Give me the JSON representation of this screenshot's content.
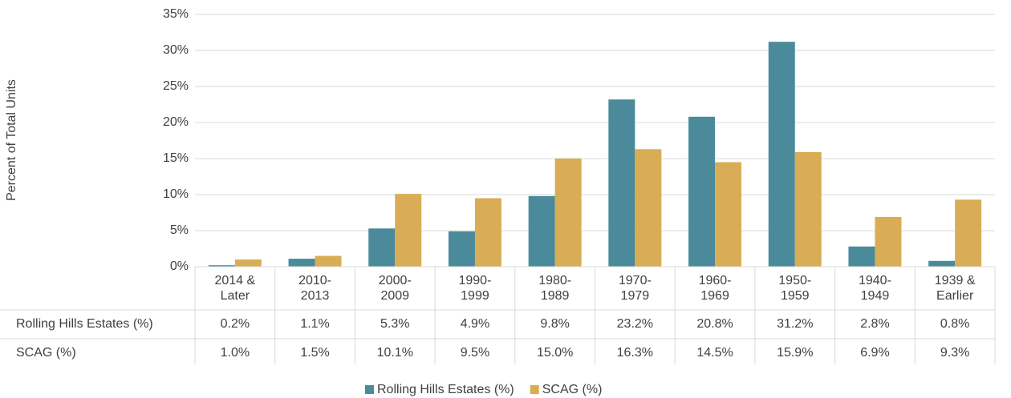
{
  "chart_data": {
    "type": "bar",
    "y_label": "Percent of Total Units",
    "categories": [
      [
        "2014 &",
        "Later"
      ],
      [
        "2010-",
        "2013"
      ],
      [
        "2000-",
        "2009"
      ],
      [
        "1990-",
        "1999"
      ],
      [
        "1980-",
        "1989"
      ],
      [
        "1970-",
        "1979"
      ],
      [
        "1960-",
        "1969"
      ],
      [
        "1950-",
        "1959"
      ],
      [
        "1940-",
        "1949"
      ],
      [
        "1939 &",
        "Earlier"
      ]
    ],
    "series": [
      {
        "name": "Rolling Hills Estates (%)",
        "color": "#4a8a9a",
        "values": [
          0.2,
          1.1,
          5.3,
          4.9,
          9.8,
          23.2,
          20.8,
          31.2,
          2.8,
          0.8
        ],
        "value_labels": [
          "0.2%",
          "1.1%",
          "5.3%",
          "4.9%",
          "9.8%",
          "23.2%",
          "20.8%",
          "31.2%",
          "2.8%",
          "0.8%"
        ]
      },
      {
        "name": "SCAG (%)",
        "color": "#d9ad56",
        "values": [
          1.0,
          1.5,
          10.1,
          9.5,
          15.0,
          16.3,
          14.5,
          15.9,
          6.9,
          9.3
        ],
        "value_labels": [
          "1.0%",
          "1.5%",
          "10.1%",
          "9.5%",
          "15.0%",
          "16.3%",
          "14.5%",
          "15.9%",
          "6.9%",
          "9.3%"
        ]
      }
    ],
    "ylim": [
      0,
      35
    ],
    "yticks": [
      {
        "value": 0,
        "label": "0%"
      },
      {
        "value": 5,
        "label": "5%"
      },
      {
        "value": 10,
        "label": "10%"
      },
      {
        "value": 15,
        "label": "15%"
      },
      {
        "value": 20,
        "label": "20%"
      },
      {
        "value": 25,
        "label": "25%"
      },
      {
        "value": 30,
        "label": "30%"
      },
      {
        "value": 35,
        "label": "35%"
      }
    ],
    "grid": true,
    "legend": "bottom"
  }
}
